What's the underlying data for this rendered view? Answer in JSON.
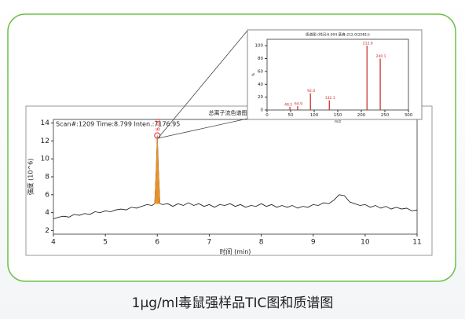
{
  "caption": "1μg/ml毒鼠强样品TIC图和质谱图",
  "chart_data": [
    {
      "type": "line",
      "title": "总离子流色谱图",
      "annotation": "Scan#:1209  Time:8.799  Inten.:7176.95",
      "peak_label": "6.00",
      "x_label": "时间 (min)",
      "y_label": "强度 (10^6)",
      "xlim": [
        4,
        11
      ],
      "xticks": [
        4,
        5,
        6,
        7,
        8,
        9,
        10,
        11
      ],
      "ylim": [
        1.6,
        14.4
      ],
      "yticks": [
        2,
        4,
        6,
        8,
        10,
        12,
        14
      ],
      "x": [
        4.0,
        4.1,
        4.2,
        4.3,
        4.4,
        4.5,
        4.6,
        4.7,
        4.8,
        4.9,
        5.0,
        5.1,
        5.2,
        5.3,
        5.4,
        5.5,
        5.6,
        5.7,
        5.8,
        5.9,
        5.95,
        5.98,
        6.0,
        6.02,
        6.05,
        6.1,
        6.2,
        6.3,
        6.4,
        6.5,
        6.6,
        6.7,
        6.8,
        6.9,
        7.0,
        7.1,
        7.2,
        7.3,
        7.4,
        7.5,
        7.6,
        7.7,
        7.8,
        7.9,
        8.0,
        8.1,
        8.2,
        8.3,
        8.4,
        8.5,
        8.6,
        8.7,
        8.8,
        8.9,
        9.0,
        9.1,
        9.2,
        9.3,
        9.4,
        9.5,
        9.6,
        9.7,
        9.8,
        9.9,
        10.0,
        10.1,
        10.2,
        10.3,
        10.4,
        10.5,
        10.6,
        10.7,
        10.8,
        10.9,
        11.0
      ],
      "series": [
        {
          "color": "#111111",
          "style": "line",
          "values": [
            3.3,
            3.5,
            3.6,
            3.5,
            3.8,
            3.7,
            3.9,
            3.8,
            4.1,
            4.0,
            4.2,
            4.1,
            4.3,
            4.4,
            4.3,
            4.6,
            4.5,
            4.7,
            4.9,
            4.8,
            5.0,
            9.0,
            12.6,
            9.0,
            5.0,
            4.9,
            5.0,
            4.7,
            5.0,
            4.8,
            5.1,
            4.8,
            5.0,
            4.7,
            4.9,
            4.6,
            4.9,
            4.8,
            5.0,
            4.7,
            4.9,
            4.6,
            4.8,
            4.7,
            5.0,
            4.7,
            4.9,
            4.6,
            4.8,
            4.6,
            4.8,
            4.5,
            4.7,
            4.6,
            4.9,
            4.8,
            5.1,
            5.0,
            5.4,
            6.0,
            5.9,
            5.2,
            5.0,
            4.8,
            4.9,
            4.6,
            4.8,
            4.5,
            4.7,
            4.4,
            4.6,
            4.4,
            4.5,
            4.2,
            4.3
          ]
        },
        {
          "color": "#e8922a",
          "style": "area",
          "values": [
            null,
            null,
            null,
            null,
            null,
            null,
            null,
            null,
            null,
            null,
            null,
            null,
            null,
            null,
            null,
            null,
            null,
            null,
            null,
            null,
            5.0,
            9.0,
            12.6,
            9.0,
            5.0,
            null,
            null,
            null,
            null,
            null,
            null,
            null,
            null,
            null,
            null,
            null,
            null,
            null,
            null,
            null,
            null,
            null,
            null,
            null,
            null,
            null,
            null,
            null,
            null,
            null,
            null,
            null,
            null,
            null,
            null,
            null,
            null,
            null,
            null,
            null,
            null,
            null,
            null,
            null,
            null,
            null,
            null,
            null,
            null,
            null,
            null,
            null,
            null,
            null,
            null
          ]
        }
      ]
    },
    {
      "type": "stem",
      "title": "质谱图 (时间:6.004 基峰:212.0(2081))",
      "x_label": "m/z",
      "y_label": "%",
      "xlim": [
        0,
        300
      ],
      "xticks": [
        0,
        50,
        100,
        150,
        200,
        250,
        300
      ],
      "ylim": [
        0,
        110
      ],
      "yticks": [
        0,
        20,
        40,
        60,
        80,
        100
      ],
      "color": "#cc2222",
      "x": [
        48.5,
        64.9,
        92.0,
        132.1,
        212.0,
        240.1
      ],
      "x_labels": [
        "48.5",
        "64.9",
        "92.0",
        "132.1",
        "212.0",
        "240.1"
      ],
      "values": [
        5,
        6,
        26,
        15,
        100,
        80
      ]
    }
  ]
}
